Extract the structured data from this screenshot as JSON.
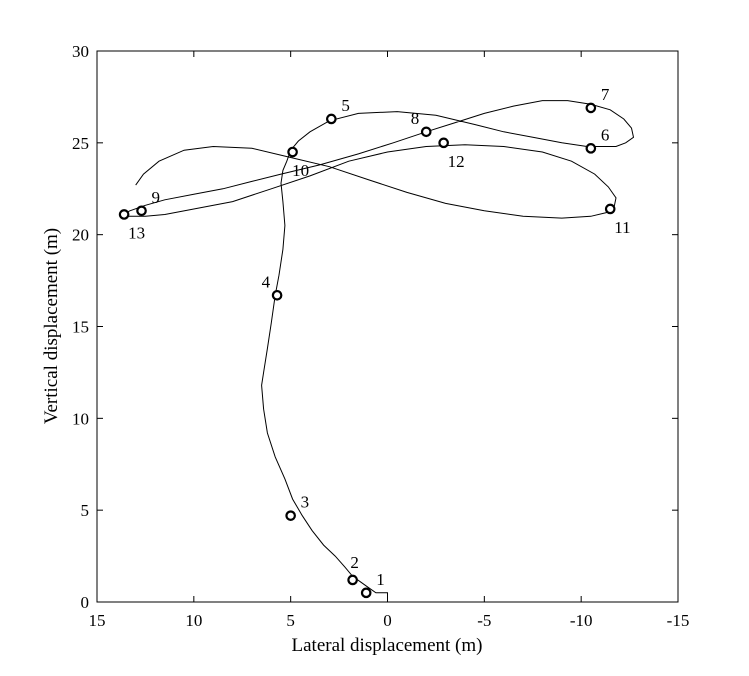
{
  "chart_data": {
    "type": "line",
    "xlabel": "Lateral displacement (m)",
    "ylabel": "Vertical displacement (m)",
    "xlim": [
      15,
      -15
    ],
    "ylim": [
      0,
      30
    ],
    "x_reversed": true,
    "grid": false,
    "xticks": [
      "15",
      "10",
      "5",
      "0",
      "-5",
      "-10",
      "-15"
    ],
    "yticks": [
      "0",
      "5",
      "10",
      "15",
      "20",
      "25",
      "30"
    ],
    "xtick_values": [
      15,
      10,
      5,
      0,
      -5,
      -10,
      -15
    ],
    "ytick_values": [
      0,
      5,
      10,
      15,
      20,
      25,
      30
    ],
    "trajectory": {
      "x": [
        0,
        0,
        0.6,
        1.0,
        1.4,
        1.8,
        2.2,
        2.7,
        3.3,
        3.9,
        4.4,
        4.9,
        5.3,
        5.8,
        6.2,
        6.4,
        6.5,
        6.4,
        6.2,
        6.0,
        5.8,
        5.6,
        5.4,
        5.3,
        5.4,
        5.5,
        5.4,
        5.2,
        5.0,
        4.6,
        4.0,
        3.0,
        1.5,
        -0.5,
        -2.5,
        -4.5,
        -6.0,
        -7.5,
        -9.0,
        -10.3,
        -11.2,
        -11.8,
        -12.3,
        -12.7,
        -12.6,
        -12.2,
        -11.5,
        -10.5,
        -9.3,
        -8.0,
        -6.5,
        -5.0,
        -3.5,
        -2.0,
        -0.3,
        1.5,
        3.5,
        5.5,
        7.0,
        8.5,
        10.0,
        11.5,
        12.5,
        13.3,
        13.7,
        13.4,
        13.0,
        12.5,
        11.5,
        10.0,
        8.0,
        6.0,
        4.0,
        2.0,
        0,
        -2.0,
        -4.0,
        -6.0,
        -8.0,
        -9.5,
        -10.7,
        -11.4,
        -11.8,
        -11.7,
        -11.3,
        -10.5,
        -9.0,
        -7.0,
        -5.0,
        -3.0,
        -1.0,
        1.0,
        3.0,
        5.0,
        7.0,
        9.0,
        10.5,
        11.8,
        12.6,
        13.0
      ],
      "y": [
        0.2,
        0.5,
        0.5,
        0.8,
        1.1,
        1.4,
        1.9,
        2.5,
        3.1,
        3.9,
        4.7,
        5.6,
        6.7,
        7.9,
        9.2,
        10.5,
        11.8,
        12.5,
        13.8,
        15.2,
        16.7,
        17.8,
        19.2,
        20.5,
        21.8,
        22.8,
        23.5,
        24.0,
        24.6,
        25.1,
        25.6,
        26.2,
        26.6,
        26.7,
        26.5,
        26.0,
        25.6,
        25.3,
        25.0,
        24.8,
        24.8,
        24.8,
        25.0,
        25.3,
        25.8,
        26.3,
        26.8,
        27.1,
        27.3,
        27.3,
        27.0,
        26.6,
        26.1,
        25.6,
        25.0,
        24.4,
        23.8,
        23.3,
        22.9,
        22.5,
        22.2,
        21.9,
        21.6,
        21.3,
        21.1,
        21.0,
        21.0,
        21.0,
        21.1,
        21.4,
        21.8,
        22.5,
        23.2,
        24.0,
        24.5,
        24.8,
        24.9,
        24.8,
        24.5,
        24.0,
        23.3,
        22.6,
        22.0,
        21.5,
        21.2,
        21.0,
        20.9,
        21.0,
        21.3,
        21.7,
        22.3,
        23.0,
        23.7,
        24.2,
        24.7,
        24.8,
        24.6,
        24.0,
        23.3,
        22.7
      ]
    },
    "markers": [
      {
        "label": "1",
        "x": 1.1,
        "y": 0.5,
        "label_pos": "right-up"
      },
      {
        "label": "2",
        "x": 1.8,
        "y": 1.2,
        "label_pos": "up"
      },
      {
        "label": "3",
        "x": 5.0,
        "y": 4.7,
        "label_pos": "right-up"
      },
      {
        "label": "4",
        "x": 5.7,
        "y": 16.7,
        "label_pos": "left-up"
      },
      {
        "label": "5",
        "x": 2.9,
        "y": 26.3,
        "label_pos": "right-up"
      },
      {
        "label": "6",
        "x": -10.5,
        "y": 24.7,
        "label_pos": "right-up"
      },
      {
        "label": "7",
        "x": -10.5,
        "y": 26.9,
        "label_pos": "right-up"
      },
      {
        "label": "8",
        "x": -2.0,
        "y": 25.6,
        "label_pos": "left-up"
      },
      {
        "label": "9",
        "x": 12.7,
        "y": 21.3,
        "label_pos": "right-up"
      },
      {
        "label": "10",
        "x": 4.9,
        "y": 24.5,
        "label_pos": "down"
      },
      {
        "label": "11",
        "x": -11.5,
        "y": 21.4,
        "label_pos": "right-down"
      },
      {
        "label": "12",
        "x": -2.9,
        "y": 25.0,
        "label_pos": "right-down"
      },
      {
        "label": "13",
        "x": 13.6,
        "y": 21.1,
        "label_pos": "right-down"
      }
    ]
  }
}
